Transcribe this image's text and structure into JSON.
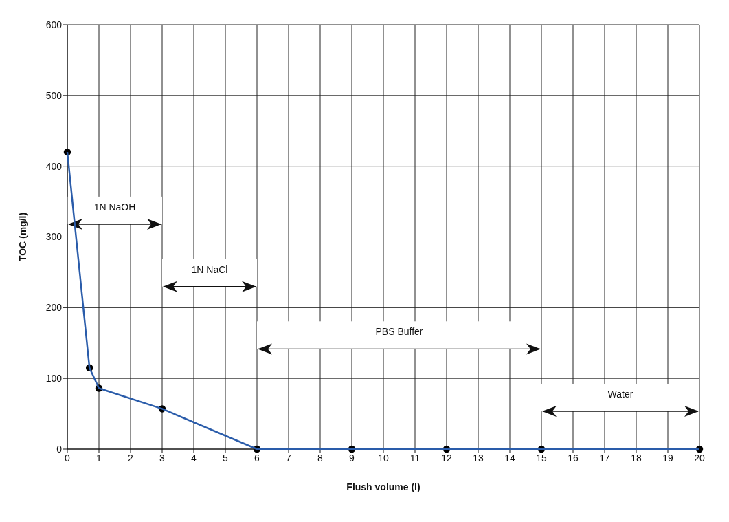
{
  "chart_data": {
    "type": "line",
    "xlabel": "Flush volume (l)",
    "ylabel": "TOC (mg/l)",
    "x": [
      0,
      0.7,
      1,
      3,
      6,
      9,
      12,
      15,
      20
    ],
    "series": [
      {
        "color": "#2a5caa",
        "values": [
          420,
          115,
          86,
          57,
          0,
          0,
          0,
          0,
          0
        ]
      }
    ],
    "xlim": [
      0,
      20
    ],
    "xticks": [
      0,
      1,
      2,
      3,
      4,
      5,
      6,
      7,
      8,
      9,
      10,
      11,
      12,
      13,
      14,
      15,
      16,
      17,
      18,
      19,
      20
    ],
    "ylim": [
      0,
      600
    ],
    "yticks": [
      0,
      100,
      200,
      300,
      400,
      500,
      600
    ],
    "grid": true,
    "marker": "circle",
    "line_style": "solid",
    "bands": [
      {
        "axis": "x",
        "from": 0,
        "to": 3,
        "label": "1N NaOH",
        "color": "#ffffff"
      },
      {
        "axis": "x",
        "from": 3,
        "to": 6,
        "label": "1N NaCl",
        "color": "#ffffff"
      },
      {
        "axis": "x",
        "from": 6,
        "to": 15,
        "label": "PBS Buffer",
        "color": "#ffffff"
      },
      {
        "axis": "x",
        "from": 15,
        "to": 20,
        "label": "Water",
        "color": "#ffffff"
      }
    ]
  }
}
